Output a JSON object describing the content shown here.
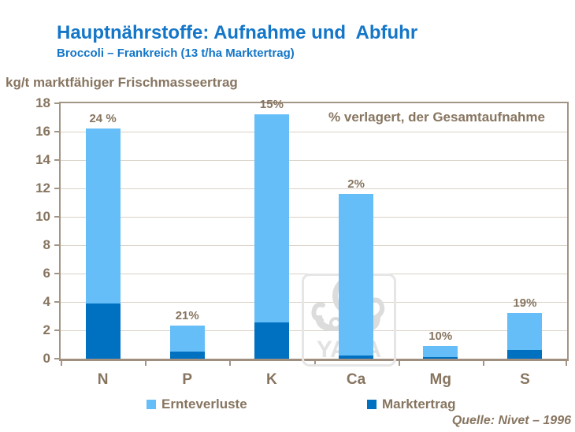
{
  "header": {
    "title": "Hauptnährstoffe: Aufnahme und  Abfuhr",
    "subtitle": "Broccoli – Frankreich (13 t/ha Marktertrag)"
  },
  "axis_title": "kg/t marktfähiger Frischmasseertrag",
  "annotation": "% verlagert, der Gesamtaufnahme",
  "source": "Quelle: Nivet – 1996",
  "watermark_text": "YARA",
  "colors": {
    "title_blue": "#1476C8",
    "text_brown": "#877560",
    "axis_frame": "#A39585",
    "gridline": "#D9D2C6",
    "light_blue": "#66BEF8",
    "dark_blue": "#0070C0",
    "watermark_gray": "#DCDCDC"
  },
  "legend": [
    {
      "label": "Ernteverluste",
      "color": "#66BEF8"
    },
    {
      "label": "Marktertrag",
      "color": "#0070C0"
    }
  ],
  "chart_data": {
    "type": "bar",
    "stacked": true,
    "categories": [
      "N",
      "P",
      "K",
      "Ca",
      "Mg",
      "S"
    ],
    "series": [
      {
        "name": "Marktertrag",
        "color": "#0070C0",
        "values": [
          3.9,
          0.5,
          2.55,
          0.25,
          0.1,
          0.6
        ]
      },
      {
        "name": "Ernteverluste",
        "color": "#66BEF8",
        "values": [
          12.3,
          1.85,
          14.7,
          11.35,
          0.8,
          2.6
        ]
      }
    ],
    "totals": [
      16.2,
      2.35,
      17.25,
      11.6,
      0.9,
      3.2
    ],
    "percent_labels": [
      "24 %",
      "21%",
      "15%",
      "2%",
      "10%",
      "19%"
    ],
    "title": "Hauptnährstoffe: Aufnahme und Abfuhr — Broccoli, Frankreich (13 t/ha Marktertrag)",
    "xlabel": "",
    "ylabel": "kg/t marktfähiger Frischmasseertrag",
    "ylim": [
      0,
      18
    ],
    "ytick_step": 2,
    "grid": true,
    "legend_position": "bottom"
  }
}
